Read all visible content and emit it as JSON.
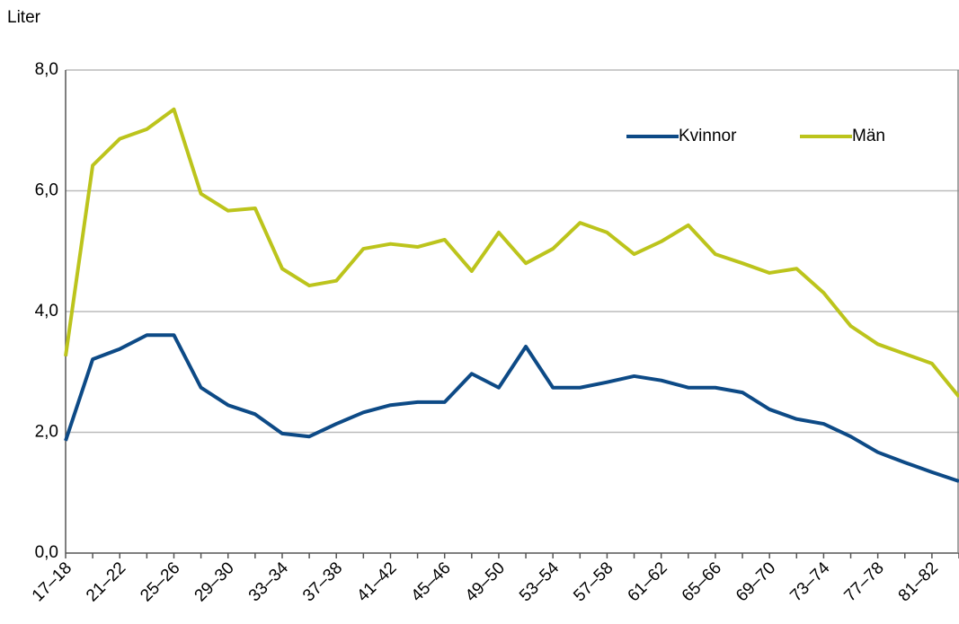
{
  "chart_data": {
    "type": "line",
    "y_label": "Liter",
    "categories": [
      "17–18",
      null,
      "21–22",
      null,
      "25–26",
      null,
      "29–30",
      null,
      "33–34",
      null,
      "37–38",
      null,
      "41–42",
      null,
      "45–46",
      null,
      "49–50",
      null,
      "53–54",
      null,
      "57–58",
      null,
      "61–62",
      null,
      "65–66",
      null,
      "69–70",
      null,
      "73–74",
      null,
      "77–78",
      null,
      "81–82",
      null
    ],
    "series": [
      {
        "name": "Kvinnor",
        "color": "#0d4a86",
        "values": [
          1.86,
          3.21,
          3.38,
          3.61,
          3.61,
          2.74,
          2.45,
          2.3,
          1.98,
          1.93,
          2.14,
          2.33,
          2.45,
          2.5,
          2.5,
          2.97,
          2.74,
          3.42,
          2.74,
          2.74,
          2.83,
          2.93,
          2.86,
          2.74,
          2.74,
          2.66,
          2.38,
          2.22,
          2.14,
          1.93,
          1.67,
          1.5,
          1.34,
          1.19
        ]
      },
      {
        "name": "Män",
        "color": "#bcc41c",
        "values": [
          3.26,
          6.42,
          6.86,
          7.02,
          7.35,
          5.95,
          5.67,
          5.71,
          4.71,
          4.43,
          4.51,
          5.04,
          5.12,
          5.07,
          5.19,
          4.67,
          5.31,
          4.8,
          5.04,
          5.47,
          5.31,
          4.95,
          5.16,
          5.43,
          4.95,
          4.8,
          4.64,
          4.71,
          4.31,
          3.76,
          3.46,
          3.3,
          3.14,
          2.59
        ]
      }
    ],
    "ylim": [
      0,
      8
    ],
    "yticks": [
      {
        "value": 0,
        "label": "0,0"
      },
      {
        "value": 2,
        "label": "2,0"
      },
      {
        "value": 4,
        "label": "4,0"
      },
      {
        "value": 6,
        "label": "6,0"
      },
      {
        "value": 8,
        "label": "8,0"
      }
    ],
    "grid": true,
    "legend": "top-right"
  }
}
